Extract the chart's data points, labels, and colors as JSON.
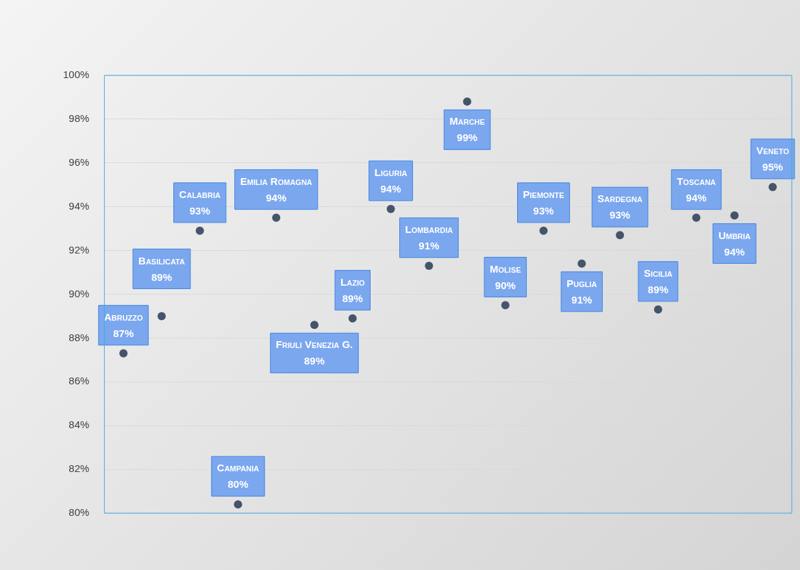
{
  "chart_data": {
    "type": "scatter",
    "marker": "circle",
    "color": "#44546a",
    "categories": [
      "Abruzzo",
      "Basilicata",
      "Calabria",
      "Campania",
      "Emilia Romagna",
      "Friuli Venezia G.",
      "Lazio",
      "Liguria",
      "Lombardia",
      "Marche",
      "Molise",
      "Piemonte",
      "Puglia",
      "Sardegna",
      "Sicilia",
      "Toscana",
      "Umbria",
      "Veneto"
    ],
    "values": [
      87.3,
      89.0,
      92.9,
      80.4,
      93.5,
      88.6,
      88.9,
      93.9,
      91.3,
      98.8,
      89.5,
      92.9,
      91.4,
      92.7,
      89.3,
      93.5,
      93.6,
      94.9
    ],
    "value_labels": [
      "87%",
      "89%",
      "93%",
      "80%",
      "94%",
      "89%",
      "89%",
      "94%",
      "91%",
      "99%",
      "90%",
      "93%",
      "91%",
      "93%",
      "89%",
      "94%",
      "94%",
      "95%"
    ],
    "ylim": [
      80,
      100
    ],
    "yticks": [
      {
        "value": 80,
        "label": "80%"
      },
      {
        "value": 82,
        "label": "82%"
      },
      {
        "value": 84,
        "label": "84%"
      },
      {
        "value": 86,
        "label": "86%"
      },
      {
        "value": 88,
        "label": "88%"
      },
      {
        "value": 90,
        "label": "90%"
      },
      {
        "value": 92,
        "label": "92%"
      },
      {
        "value": 94,
        "label": "94%"
      },
      {
        "value": 96,
        "label": "96%"
      },
      {
        "value": 98,
        "label": "98%"
      },
      {
        "value": 100,
        "label": "100%"
      }
    ],
    "grid": "y",
    "tick_labels": "y",
    "legend": false
  }
}
